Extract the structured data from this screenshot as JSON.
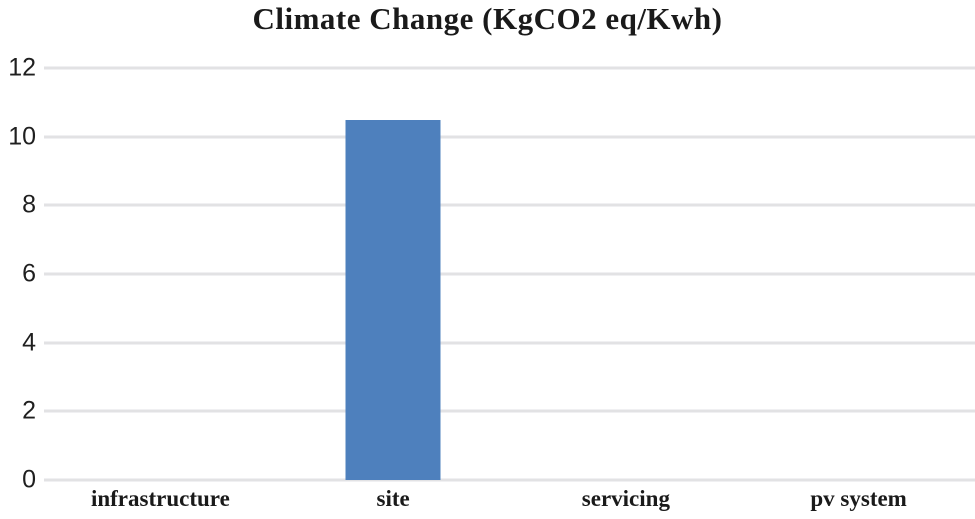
{
  "chart_data": {
    "type": "bar",
    "title": "Climate Change (KgCO2 eq/Kwh)",
    "categories": [
      "infrastructure",
      "site",
      "servicing",
      "pv system"
    ],
    "values": [
      0,
      10.5,
      0,
      0
    ],
    "xlabel": "",
    "ylabel": "",
    "ylim": [
      0,
      12
    ],
    "yticks": [
      0,
      2,
      4,
      6,
      8,
      10,
      12
    ],
    "grid": true,
    "legend_position": "none",
    "bar_color": "#4e80bd",
    "gridline_color": "#e2e2e4",
    "title_color": "#1a1a1a",
    "tick_label_color": "#1f1f1f"
  }
}
